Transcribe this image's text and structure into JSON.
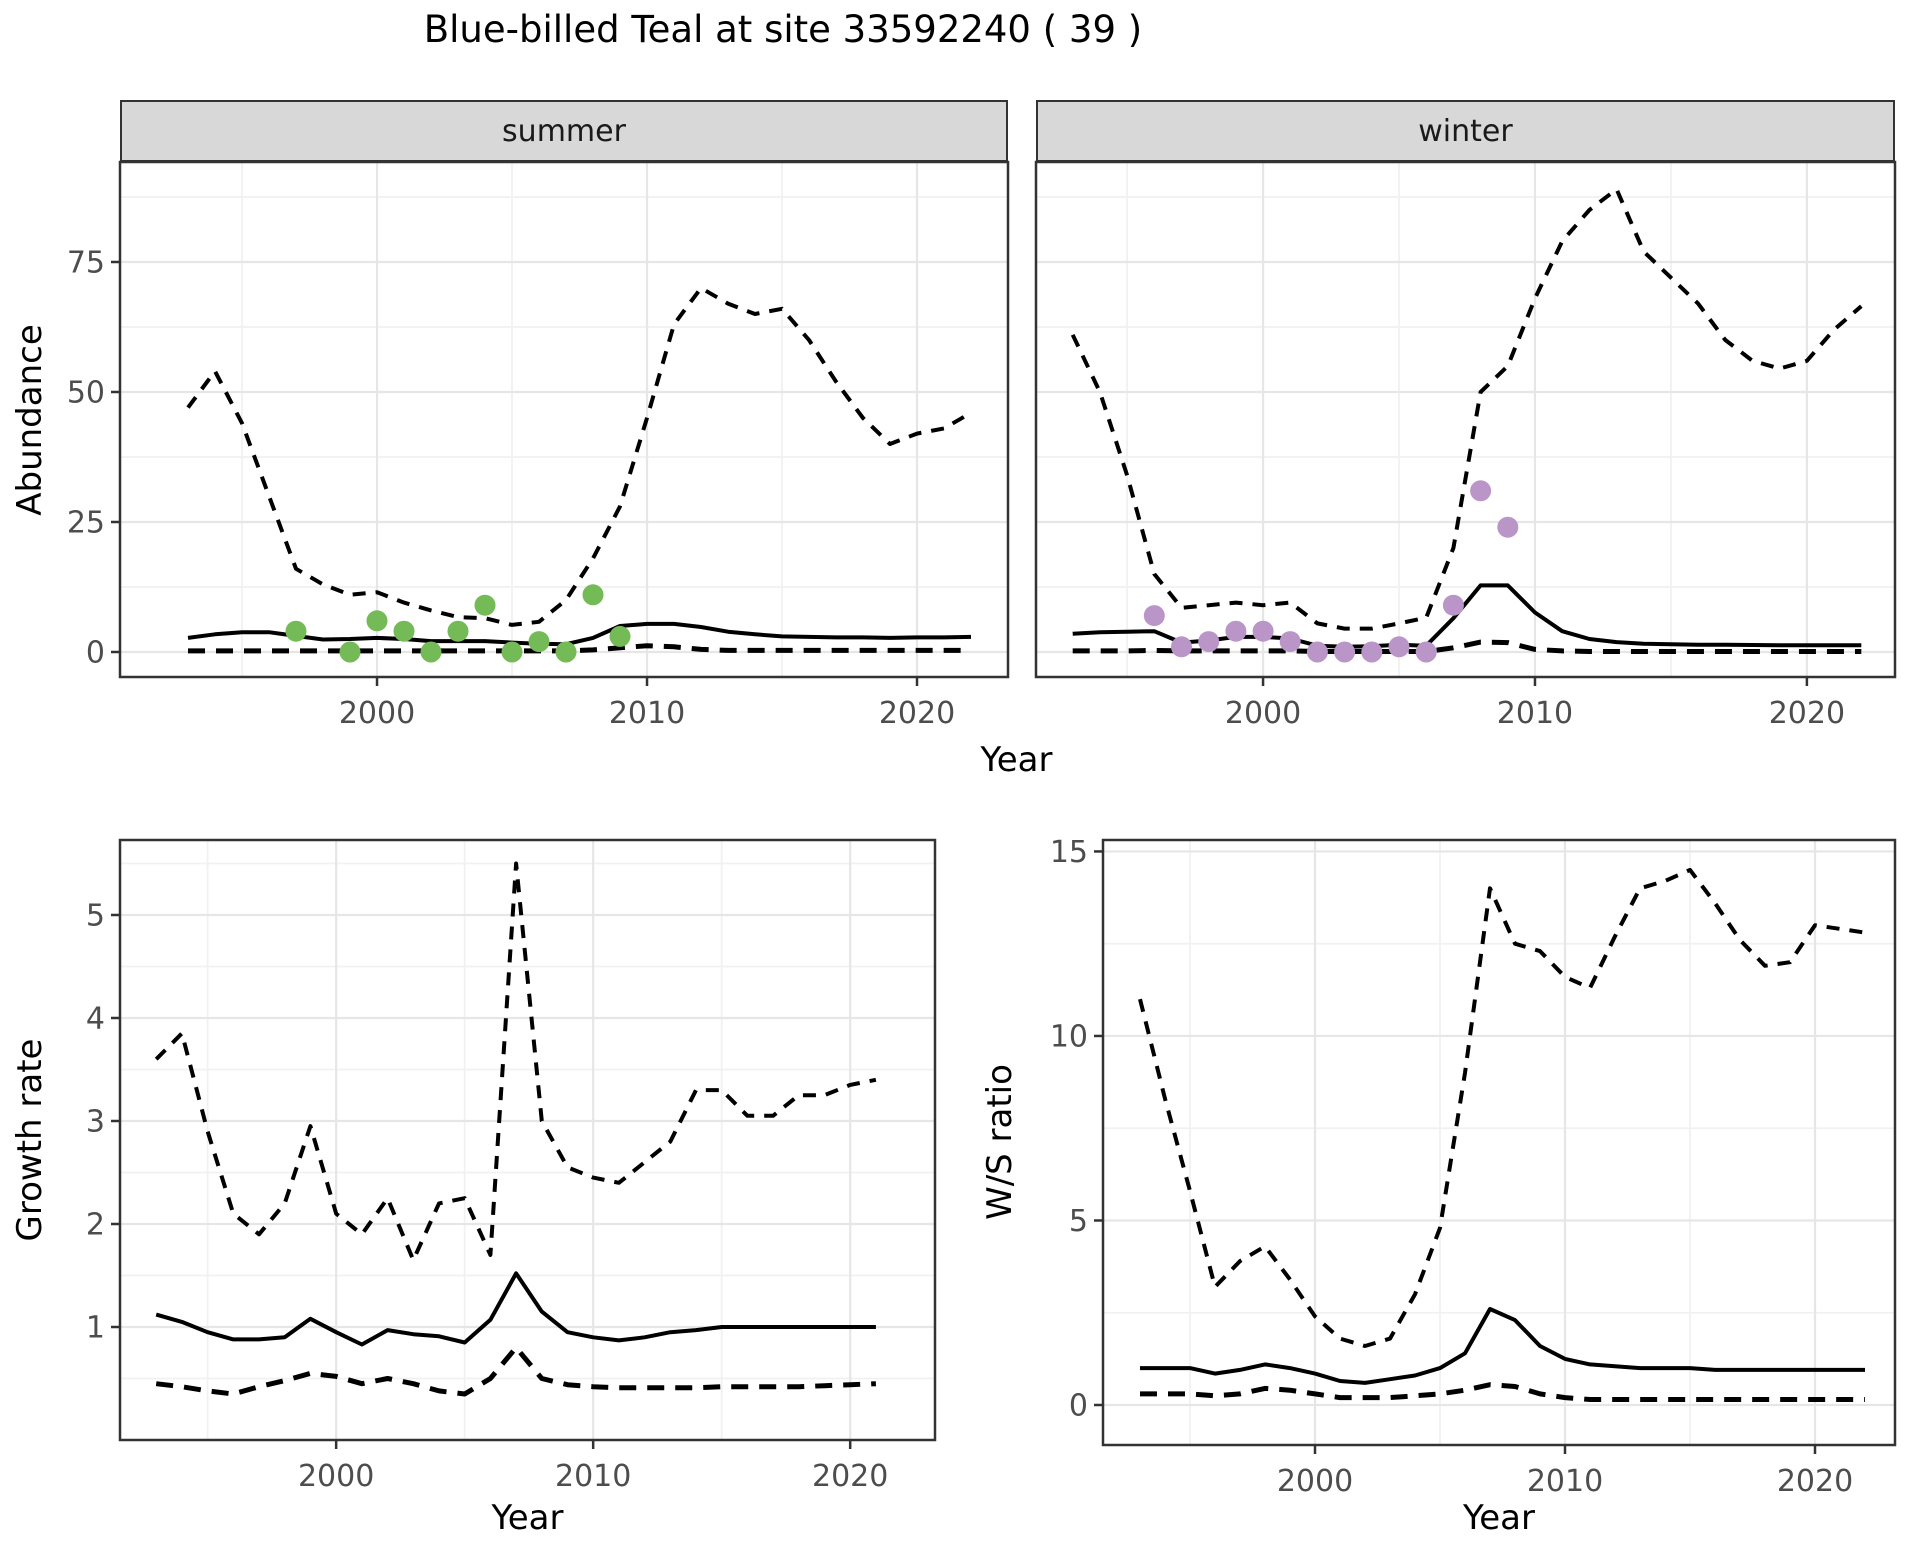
{
  "title": "Blue-billed Teal at site 33592240 ( 39 )",
  "axis_labels": {
    "abundance": "Abundance",
    "year": "Year",
    "growth_rate": "Growth rate",
    "ws_ratio": "W/S ratio"
  },
  "facets": {
    "summer": "summer",
    "winter": "winter"
  },
  "colors": {
    "summer_points": "#74BB57",
    "winter_points": "#BA95C7",
    "line": "#000000",
    "tick_text": "#4D4D4D",
    "strip_bg": "#D8D8D8",
    "panel_border": "#333333",
    "grid_major": "#E6E6E6",
    "grid_minor": "#F1F1F1"
  },
  "chart_data": [
    {
      "id": "summer-abundance",
      "type": "line",
      "facet": "summer",
      "xlabel": "Year",
      "ylabel": "Abundance",
      "xlim": [
        1990.48,
        2023.37
      ],
      "ylim": [
        -4.81,
        94.23
      ],
      "xticks": [
        2000,
        2010,
        2020
      ],
      "yticks": [
        0,
        25,
        50,
        75
      ],
      "show_ytick_labels": true,
      "series": [
        {
          "name": "median",
          "style": "solid",
          "x0": 1993,
          "values": [
            2.7,
            3.4,
            3.8,
            3.8,
            3.1,
            2.4,
            2.5,
            2.7,
            2.5,
            2.1,
            2.1,
            2.1,
            1.8,
            1.6,
            1.5,
            2.7,
            5.0,
            5.4,
            5.4,
            4.8,
            3.9,
            3.4,
            3.0,
            2.9,
            2.8,
            2.8,
            2.7,
            2.8,
            2.8,
            2.9
          ]
        },
        {
          "name": "upper_ci",
          "style": "dashed",
          "x0": 1993,
          "values": [
            47,
            54,
            44,
            30,
            16,
            13,
            11,
            11.5,
            9.5,
            8,
            6.7,
            6.5,
            5.2,
            5.8,
            10,
            18,
            28,
            45,
            63,
            70,
            67,
            65,
            66,
            60,
            52,
            45,
            40,
            42,
            43,
            46
          ]
        },
        {
          "name": "lower_ci",
          "style": "dashed_heavy",
          "x0": 1993,
          "values": [
            0.2,
            0.2,
            0.2,
            0.2,
            0.2,
            0.2,
            0.2,
            0.2,
            0.2,
            0.2,
            0.2,
            0.2,
            0.2,
            0.2,
            0.2,
            0.4,
            0.8,
            1.2,
            1.0,
            0.5,
            0.3,
            0.3,
            0.3,
            0.3,
            0.3,
            0.3,
            0.3,
            0.3,
            0.3,
            0.3
          ]
        }
      ],
      "points": {
        "name": "observed_counts",
        "color_key": "summer_points",
        "years": [
          1997,
          1999,
          2000,
          2001,
          2002,
          2003,
          2004,
          2005,
          2006,
          2007,
          2008,
          2009
        ],
        "values": [
          4,
          0,
          6,
          4,
          0,
          4,
          9,
          0,
          2,
          0,
          11,
          3
        ]
      }
    },
    {
      "id": "winter-abundance",
      "type": "line",
      "facet": "winter",
      "xlabel": "Year",
      "ylabel": "Abundance",
      "xlim": [
        1991.65,
        2023.24
      ],
      "ylim": [
        -4.81,
        94.23
      ],
      "xticks": [
        2000,
        2010,
        2020
      ],
      "yticks": [
        0,
        25,
        50,
        75
      ],
      "show_ytick_labels": false,
      "series": [
        {
          "name": "median",
          "style": "solid",
          "x0": 1993,
          "values": [
            3.5,
            3.8,
            3.9,
            4.0,
            1.8,
            2.2,
            2.9,
            2.9,
            2.6,
            1.2,
            1.0,
            1.1,
            1.4,
            1.2,
            6.5,
            12.8,
            12.8,
            7.6,
            4.0,
            2.5,
            1.9,
            1.6,
            1.5,
            1.4,
            1.4,
            1.35,
            1.3,
            1.3,
            1.3,
            1.3
          ]
        },
        {
          "name": "upper_ci",
          "style": "dashed",
          "x0": 1993,
          "values": [
            61,
            50,
            34,
            15,
            8.5,
            9,
            9.5,
            9,
            9.5,
            5.5,
            4.5,
            4.5,
            5.5,
            6.6,
            20,
            50,
            55,
            68,
            79,
            85,
            89,
            77,
            72,
            67,
            60,
            56,
            54.5,
            56,
            62,
            66.5
          ]
        },
        {
          "name": "lower_ci",
          "style": "dashed_heavy",
          "x0": 1993,
          "values": [
            0.2,
            0.2,
            0.2,
            0.3,
            0.2,
            0.2,
            0.2,
            0.2,
            0.2,
            0.1,
            0.1,
            0.1,
            0.1,
            0.1,
            0.8,
            1.9,
            1.8,
            0.5,
            0.2,
            0.1,
            0.1,
            0.1,
            0.1,
            0.1,
            0.1,
            0.1,
            0.1,
            0.1,
            0.1,
            0.1
          ]
        }
      ],
      "points": {
        "name": "observed_counts",
        "color_key": "winter_points",
        "years": [
          1996,
          1997,
          1998,
          1999,
          2000,
          2001,
          2002,
          2003,
          2004,
          2005,
          2006,
          2007,
          2008,
          2009
        ],
        "values": [
          7,
          1,
          2,
          4,
          4,
          2,
          0,
          0,
          0,
          1,
          0,
          9,
          31,
          24
        ]
      }
    },
    {
      "id": "growth-rate",
      "type": "line",
      "facet": null,
      "xlabel": "Year",
      "ylabel": "Growth rate",
      "xlim": [
        1991.59,
        2023.3
      ],
      "ylim": [
        -0.097,
        5.728
      ],
      "xticks": [
        2000,
        2010,
        2020
      ],
      "yticks": [
        1,
        2,
        3,
        4,
        5
      ],
      "show_ytick_labels": true,
      "series": [
        {
          "name": "median",
          "style": "solid",
          "x0": 1993,
          "values": [
            1.12,
            1.05,
            0.95,
            0.88,
            0.88,
            0.9,
            1.08,
            0.95,
            0.83,
            0.97,
            0.93,
            0.91,
            0.85,
            1.07,
            1.52,
            1.15,
            0.95,
            0.9,
            0.87,
            0.9,
            0.95,
            0.97,
            1.0,
            1.0,
            1.0,
            1.0,
            1.0,
            1.0,
            1.0
          ]
        },
        {
          "name": "upper_ci",
          "style": "dashed",
          "x0": 1993,
          "values": [
            3.6,
            3.85,
            2.9,
            2.1,
            1.9,
            2.2,
            2.95,
            2.1,
            1.9,
            2.25,
            1.65,
            2.2,
            2.25,
            1.7,
            5.5,
            3.0,
            2.55,
            2.45,
            2.4,
            2.6,
            2.8,
            3.3,
            3.3,
            3.05,
            3.05,
            3.25,
            3.25,
            3.35,
            3.4
          ]
        },
        {
          "name": "lower_ci",
          "style": "dashed_heavy",
          "x0": 1993,
          "values": [
            0.45,
            0.42,
            0.38,
            0.35,
            0.42,
            0.48,
            0.55,
            0.52,
            0.45,
            0.5,
            0.45,
            0.38,
            0.35,
            0.5,
            0.8,
            0.5,
            0.44,
            0.42,
            0.41,
            0.41,
            0.41,
            0.41,
            0.42,
            0.42,
            0.42,
            0.42,
            0.43,
            0.44,
            0.45
          ]
        }
      ],
      "points": null
    },
    {
      "id": "ws-ratio",
      "type": "line",
      "facet": null,
      "xlabel": "Year",
      "ylabel": "W/S ratio",
      "xlim": [
        1991.52,
        2023.2
      ],
      "ylim": [
        -1.084,
        15.31
      ],
      "xticks": [
        2000,
        2010,
        2020
      ],
      "yticks": [
        0,
        5,
        10,
        15
      ],
      "show_ytick_labels": true,
      "series": [
        {
          "name": "median",
          "style": "solid",
          "x0": 1993,
          "values": [
            1.0,
            1.0,
            1.0,
            0.85,
            0.95,
            1.1,
            1.0,
            0.85,
            0.65,
            0.6,
            0.7,
            0.8,
            1.0,
            1.4,
            2.6,
            2.3,
            1.6,
            1.25,
            1.1,
            1.05,
            1.0,
            1.0,
            1.0,
            0.95,
            0.95,
            0.95,
            0.95,
            0.95,
            0.95,
            0.95
          ]
        },
        {
          "name": "upper_ci",
          "style": "dashed",
          "x0": 1993,
          "values": [
            11.0,
            8.3,
            5.8,
            3.2,
            3.9,
            4.3,
            3.4,
            2.4,
            1.8,
            1.6,
            1.8,
            3.0,
            4.8,
            9.0,
            14.0,
            12.5,
            12.3,
            11.6,
            11.3,
            12.7,
            14.0,
            14.2,
            14.5,
            13.6,
            12.6,
            11.9,
            12.0,
            13.0,
            12.9,
            12.8
          ]
        },
        {
          "name": "lower_ci",
          "style": "dashed_heavy",
          "x0": 1993,
          "values": [
            0.3,
            0.3,
            0.3,
            0.25,
            0.3,
            0.45,
            0.4,
            0.3,
            0.2,
            0.2,
            0.2,
            0.25,
            0.3,
            0.4,
            0.55,
            0.5,
            0.3,
            0.2,
            0.15,
            0.15,
            0.15,
            0.15,
            0.15,
            0.15,
            0.15,
            0.15,
            0.15,
            0.15,
            0.15,
            0.15
          ]
        }
      ],
      "points": null
    }
  ]
}
